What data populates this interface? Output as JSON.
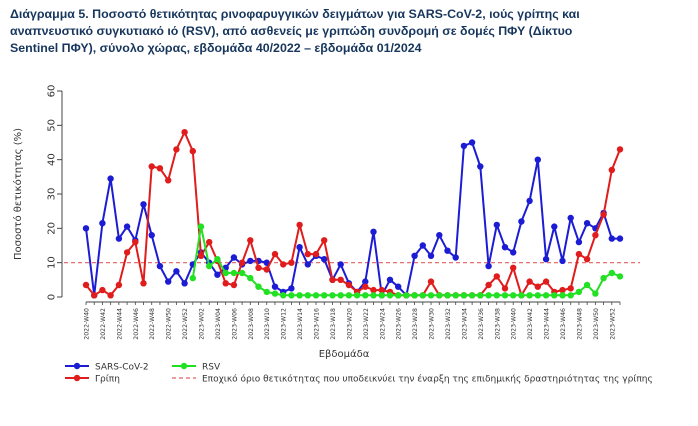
{
  "title_lines": [
    "Διάγραμμα 5. Ποσοστό θετικότητας ρινοφαρυγγικών δειγμάτων για SARS-CoV-2, ιούς γρίπης και",
    "αναπνευστικό συγκυτιακό ιό (RSV), από ασθενείς με γριπώδη συνδρομή σε δομές ΠΦΥ (Δίκτυο",
    "Sentinel ΠΦΥ), σύνολο χώρας, εβδομάδα 40/2022 – εβδομάδα 01/2024"
  ],
  "chart_data": {
    "type": "line",
    "xlabel": "Εβδομάδα",
    "ylabel": "Ποσοστό θετικότητας (%)",
    "ylim": [
      0,
      60
    ],
    "yticks": [
      0,
      10,
      20,
      30,
      40,
      50,
      60
    ],
    "grid": false,
    "legend_position": "bottom",
    "categories": [
      "2022-W40",
      "2022-W41",
      "2022-W42",
      "2022-W43",
      "2022-W44",
      "2022-W45",
      "2022-W46",
      "2022-W47",
      "2022-W48",
      "2022-W49",
      "2022-W50",
      "2022-W51",
      "2022-W52",
      "2023-W01",
      "2023-W02",
      "2023-W03",
      "2023-W04",
      "2023-W05",
      "2023-W06",
      "2023-W07",
      "2023-W08",
      "2023-W09",
      "2023-W10",
      "2023-W11",
      "2023-W12",
      "2023-W13",
      "2023-W14",
      "2023-W15",
      "2023-W16",
      "2023-W17",
      "2023-W18",
      "2023-W19",
      "2023-W20",
      "2023-W21",
      "2023-W22",
      "2023-W23",
      "2023-W24",
      "2023-W25",
      "2023-W26",
      "2023-W27",
      "2023-W28",
      "2023-W29",
      "2023-W30",
      "2023-W31",
      "2023-W32",
      "2023-W33",
      "2023-W34",
      "2023-W35",
      "2023-W36",
      "2023-W37",
      "2023-W38",
      "2023-W39",
      "2023-W40",
      "2023-W41",
      "2023-W42",
      "2023-W43",
      "2023-W44",
      "2023-W45",
      "2023-W46",
      "2023-W47",
      "2023-W48",
      "2023-W49",
      "2023-W50",
      "2023-W51",
      "2023-W52",
      "2024-W01"
    ],
    "tick_labels": [
      "2022-W40",
      "2022-W42",
      "2022-W44",
      "2022-W46",
      "2022-W48",
      "2022-W50",
      "2022-W52",
      "2023-W02",
      "2023-W04",
      "2023-W06",
      "2023-W08",
      "2023-W10",
      "2023-W12",
      "2023-W14",
      "2023-W16",
      "2023-W18",
      "2023-W20",
      "2023-W22",
      "2023-W24",
      "2023-W26",
      "2023-W28",
      "2023-W30",
      "2023-W32",
      "2023-W34",
      "2023-W36",
      "2023-W38",
      "2023-W40",
      "2023-W42",
      "2023-W44",
      "2023-W46",
      "2023-W48",
      "2023-W50",
      "2023-W52"
    ],
    "series": [
      {
        "name": "SARS-CoV-2",
        "color": "#1c1cd4",
        "values": [
          20,
          0.5,
          21.5,
          34.5,
          17,
          20.5,
          16.5,
          27,
          18,
          9,
          4.5,
          7.5,
          4,
          9.5,
          13,
          10,
          6.5,
          8.5,
          11.5,
          9.5,
          10.5,
          10.5,
          10,
          3,
          1.5,
          2.5,
          14.5,
          9.5,
          12,
          11,
          5,
          9.5,
          4,
          1.5,
          4.5,
          19,
          0.5,
          5,
          3,
          0.5,
          12,
          15,
          12,
          18,
          13.5,
          11.5,
          44,
          45,
          38,
          9,
          21,
          14.5,
          13,
          22,
          28,
          40,
          11,
          20.5,
          10.5,
          23,
          16,
          21.5,
          20,
          24.5,
          17,
          17
        ]
      },
      {
        "name": "Γρίπη",
        "color": "#e01c1c",
        "values": [
          3.5,
          0.5,
          2,
          0.5,
          3.5,
          13,
          16,
          4,
          38,
          37.5,
          34,
          43,
          48,
          42.5,
          12,
          16,
          10.5,
          4,
          3.5,
          10,
          16.5,
          8.5,
          8,
          12.5,
          9.5,
          10,
          21,
          12.5,
          12.5,
          16.5,
          5,
          5,
          3.5,
          1.5,
          3,
          2,
          2,
          1.5,
          0.5,
          0.5,
          0.5,
          0.5,
          4.5,
          0.5,
          0.5,
          0.5,
          0.5,
          0.5,
          0.5,
          3.5,
          6,
          2.5,
          8.5,
          0.5,
          4.5,
          3,
          4.5,
          1.5,
          2,
          2.5,
          12.5,
          11,
          18,
          24,
          37,
          43
        ]
      },
      {
        "name": "RSV",
        "color": "#22e022",
        "values": [
          null,
          null,
          null,
          null,
          null,
          null,
          null,
          null,
          null,
          null,
          null,
          null,
          null,
          5.5,
          20.5,
          9,
          11,
          7,
          7,
          7,
          5.5,
          3,
          1.5,
          1,
          0.5,
          0.5,
          0.5,
          0.5,
          0.5,
          0.5,
          0.5,
          0.5,
          0.5,
          0.5,
          0.5,
          0.5,
          0.5,
          0.5,
          0.5,
          0.5,
          0.5,
          0.5,
          0.5,
          0.5,
          0.5,
          0.5,
          0.5,
          0.5,
          0.5,
          0.5,
          0.5,
          0.5,
          0.5,
          0.5,
          0.5,
          0.5,
          0.5,
          0.5,
          0.5,
          0.5,
          1.5,
          3.5,
          1,
          5.5,
          7,
          6
        ]
      }
    ],
    "threshold": {
      "value": 10,
      "color": "#e06060",
      "label": "Εποχικό όριο θετικότητας που υποδεικνύει την έναρξη της επιδημικής δραστηριότητας της γρίπης"
    }
  }
}
